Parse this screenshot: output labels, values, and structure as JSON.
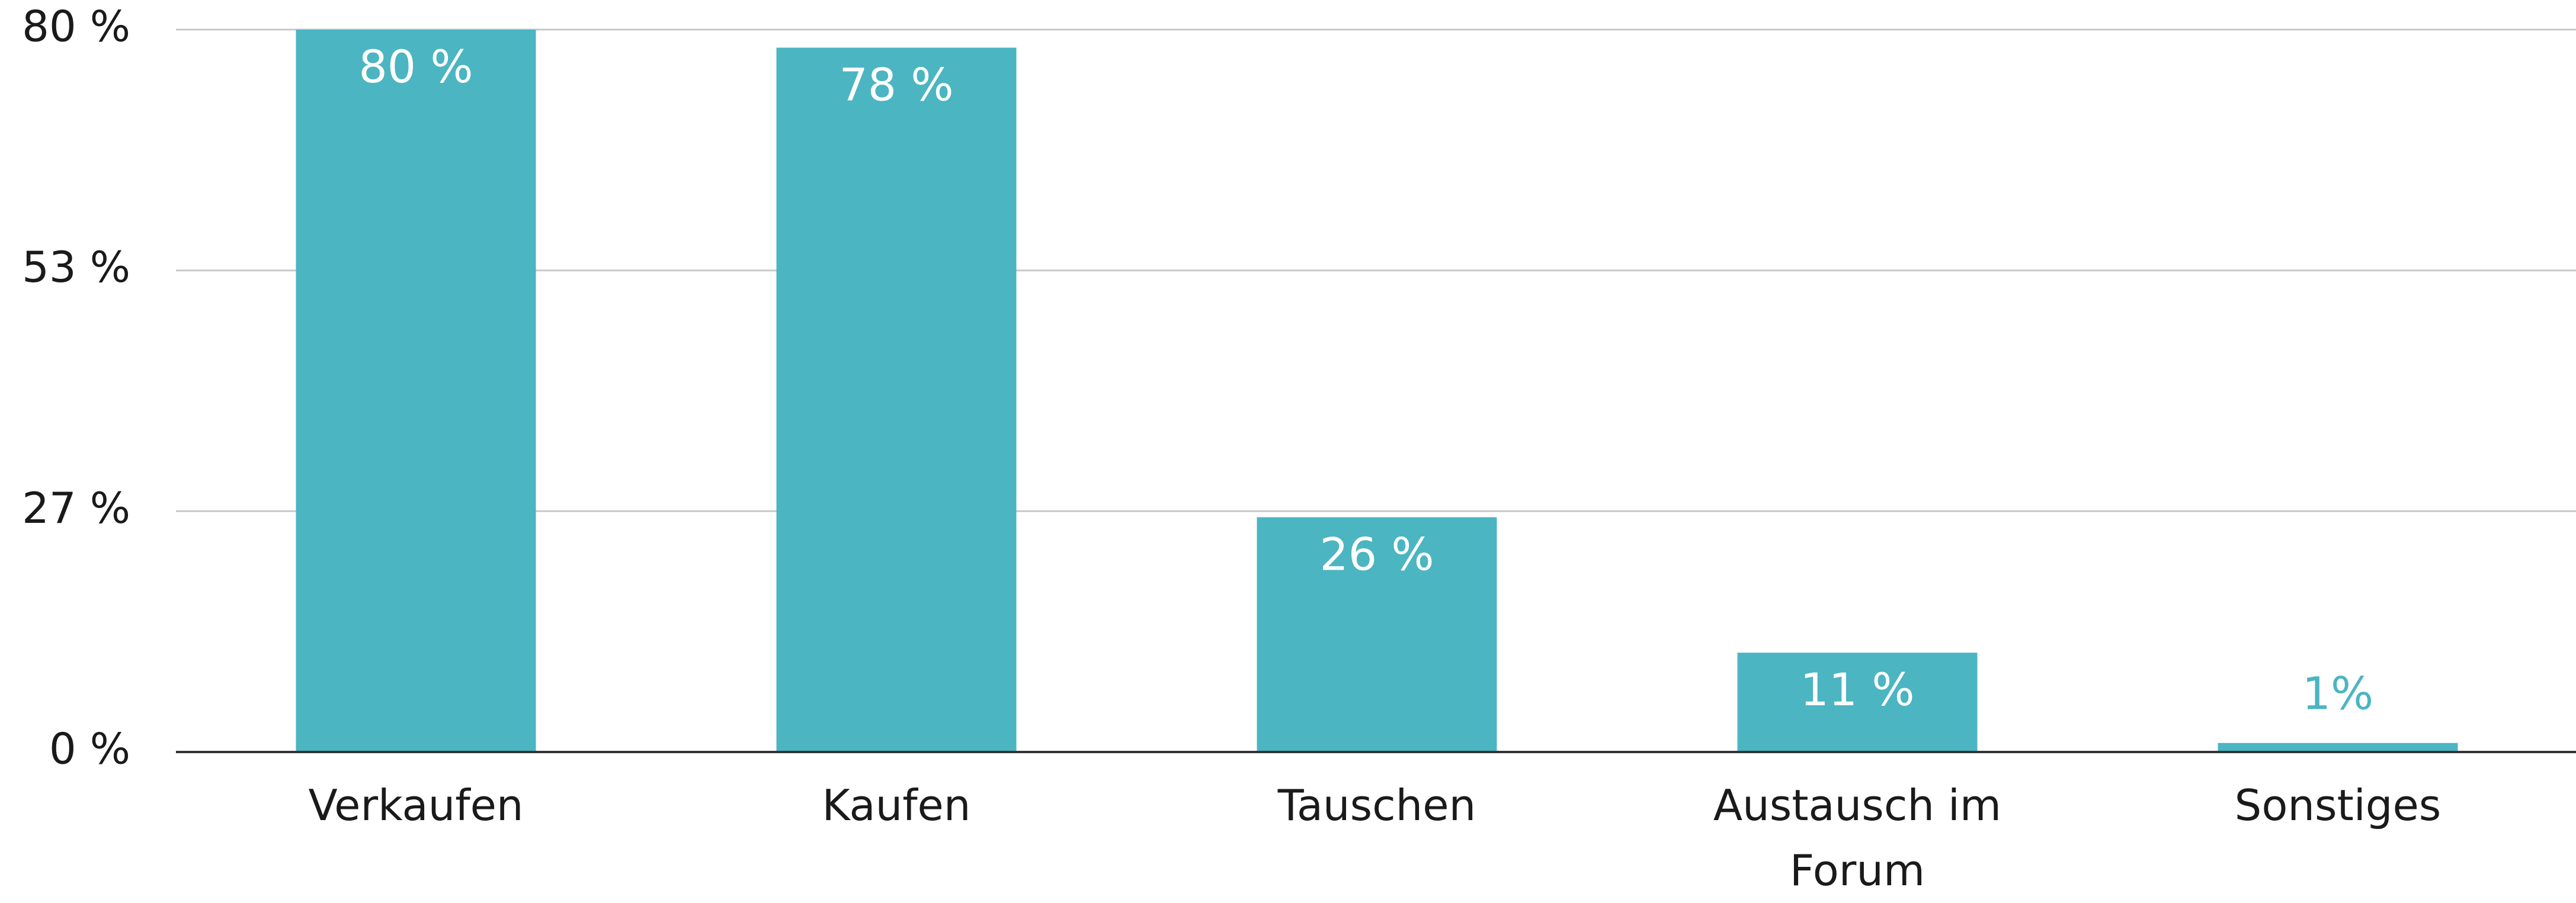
{
  "chart_data": {
    "type": "bar",
    "categories": [
      "Verkaufen",
      "Kaufen",
      "Tauschen",
      "Austausch im Forum",
      "Sonstiges"
    ],
    "values": [
      80,
      78,
      26,
      11,
      1
    ],
    "value_labels": [
      "80 %",
      "78 %",
      "26 %",
      "11 %",
      "1%"
    ],
    "color": "#4bb5c2",
    "ylim": [
      0,
      80
    ],
    "yticks": [
      {
        "value": 0,
        "label": "0 %"
      },
      {
        "value": 26.67,
        "label": "27 %"
      },
      {
        "value": 53.33,
        "label": "53 %"
      },
      {
        "value": 80,
        "label": "80 %"
      }
    ],
    "grid": true
  }
}
